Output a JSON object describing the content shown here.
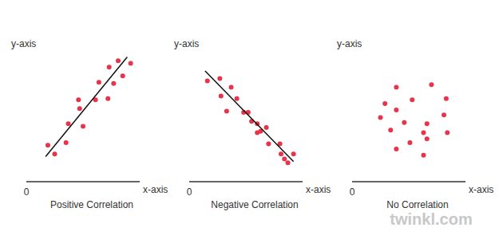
{
  "chart_data": [
    {
      "type": "scatter",
      "title": "Positive Correlation",
      "x_label": "x-axis",
      "y_label": "y-axis",
      "x": [
        1.9,
        2.5,
        3.5,
        3.7,
        4.6,
        4.7,
        5.0,
        6.1,
        6.4,
        7.2,
        7.3,
        7.7,
        8.1,
        8.5,
        9.2
      ],
      "values": [
        2.9,
        2.2,
        3.1,
        4.6,
        6.5,
        5.8,
        4.4,
        6.5,
        7.9,
        6.6,
        9.1,
        7.8,
        9.6,
        8.4,
        9.4
      ],
      "color": "#e8334a",
      "trend_line": {
        "x": [
          1.7,
          8.9
        ],
        "y": [
          2.0,
          9.9
        ],
        "color": "#111111"
      },
      "xlim": [
        0,
        10
      ],
      "ylim": [
        0,
        10
      ],
      "xticks": [
        0
      ],
      "yticks": [],
      "tick_labels": "x"
    },
    {
      "type": "scatter",
      "title": "Negative Correlation",
      "x_label": "x-axis",
      "y_label": "y-axis",
      "x": [
        1.6,
        2.7,
        3.7,
        2.8,
        4.2,
        3.3,
        4.8,
        5.2,
        5.5,
        6.0,
        6.3,
        6.8,
        6.0,
        7.0,
        8.0,
        8.1,
        8.4,
        8.7,
        9.2
      ],
      "values": [
        8.0,
        8.2,
        7.5,
        6.8,
        6.6,
        5.6,
        5.5,
        5.5,
        4.8,
        4.6,
        4.0,
        4.3,
        3.9,
        3.0,
        3.0,
        2.2,
        1.8,
        1.5,
        2.2
      ],
      "color": "#e8334a",
      "trend_line": {
        "x": [
          1.4,
          9.2
        ],
        "y": [
          8.8,
          1.6
        ],
        "color": "#111111"
      },
      "xlim": [
        0,
        10
      ],
      "ylim": [
        0,
        10
      ],
      "xticks": [
        0
      ],
      "yticks": [],
      "tick_labels": "x"
    },
    {
      "type": "scatter",
      "title": "No Correlation",
      "x_label": "x-axis",
      "y_label": "y-axis",
      "x": [
        3.9,
        7.0,
        2.9,
        5.3,
        8.3,
        3.9,
        2.5,
        4.6,
        8.1,
        3.4,
        6.6,
        6.3,
        8.4,
        5.1,
        6.6,
        3.9,
        6.3
      ],
      "values": [
        7.5,
        7.7,
        6.2,
        6.5,
        6.6,
        5.7,
        5.1,
        4.7,
        5.3,
        4.1,
        4.6,
        3.9,
        3.9,
        3.1,
        3.4,
        2.6,
        2.1
      ],
      "color": "#e8334a",
      "xlim": [
        0,
        10
      ],
      "ylim": [
        0,
        10
      ],
      "xticks": [
        0
      ],
      "yticks": [],
      "tick_labels": "x"
    }
  ],
  "footer": "twinkl.com"
}
